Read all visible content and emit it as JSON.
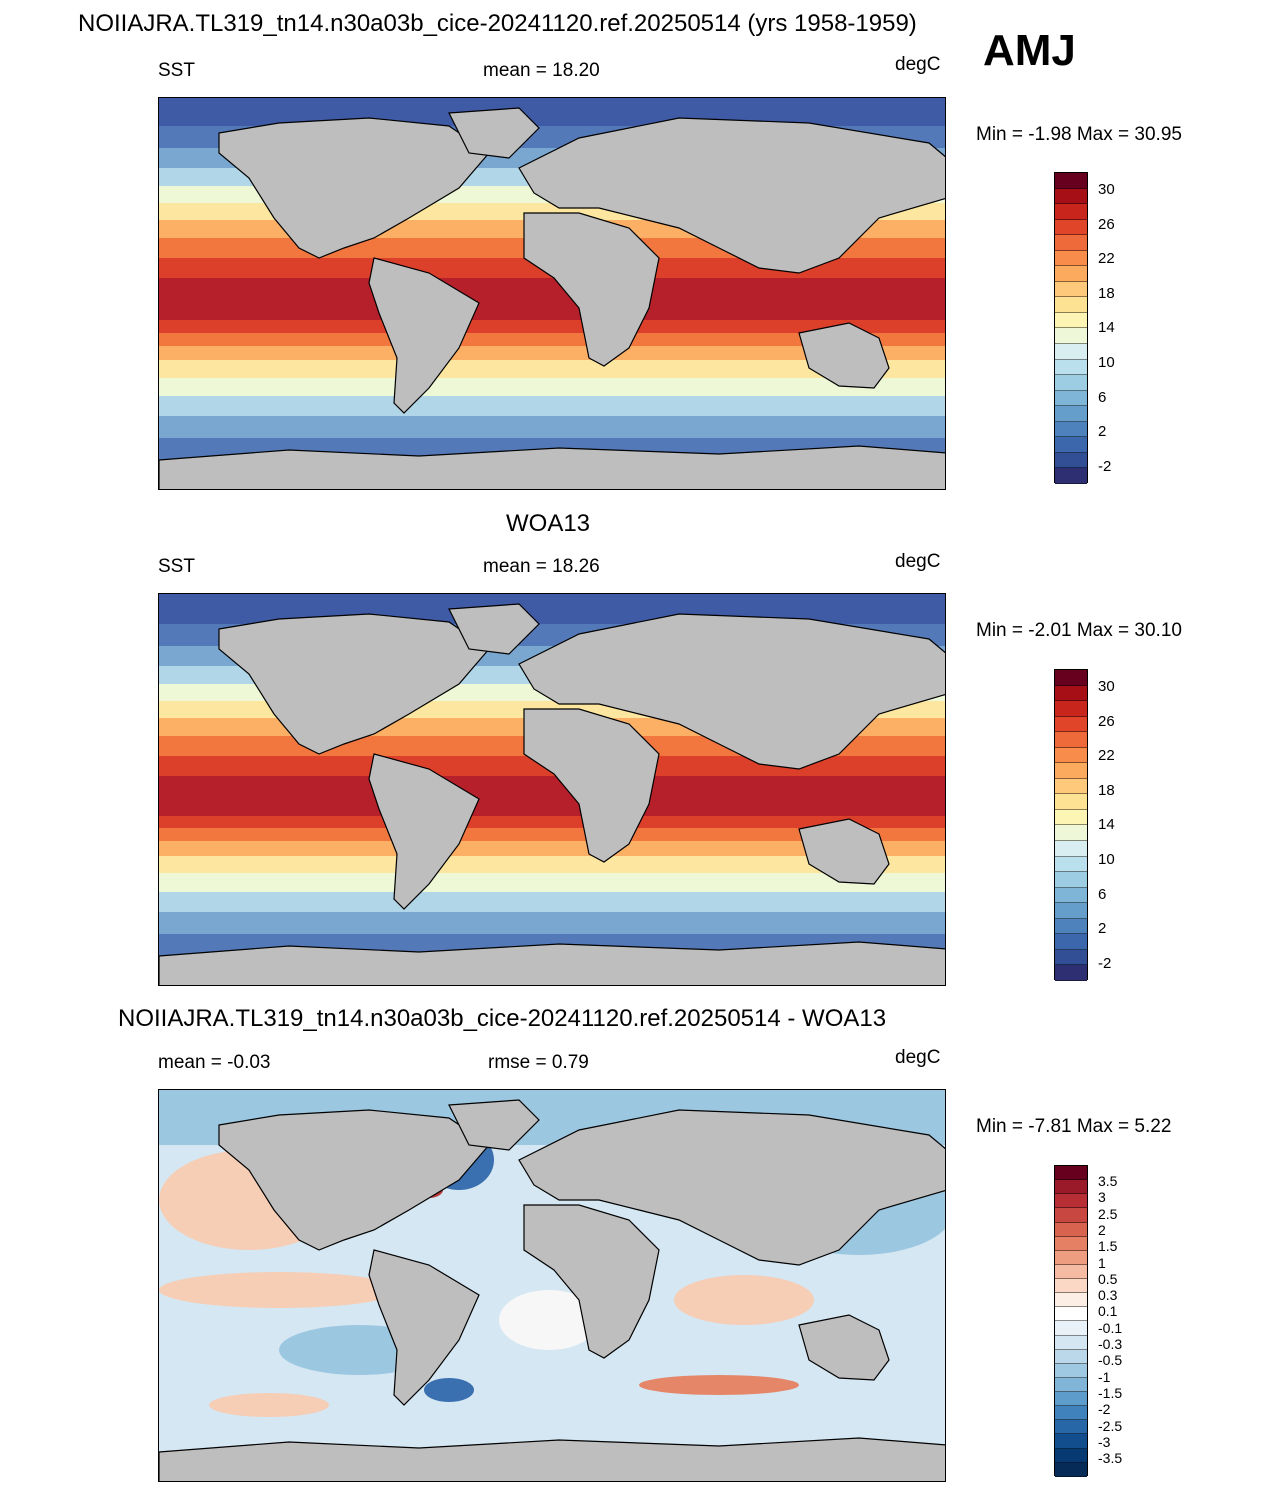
{
  "header": {
    "title": "NOIIAJRA.TL319_tn14.n30a03b_cice-20241120.ref.20250514 (yrs 1958-1959)",
    "season": "AMJ"
  },
  "panels": [
    {
      "id": "model",
      "title": "",
      "var_label": "SST",
      "stat_label": "mean =  18.20",
      "units": "degC",
      "minmax": "Min =  -1.98 Max =  30.95"
    },
    {
      "id": "obs",
      "title": "WOA13",
      "var_label": "SST",
      "stat_label": "mean =  18.26",
      "units": "degC",
      "minmax": "Min =  -2.01 Max =  30.10"
    },
    {
      "id": "diff",
      "title": "NOIIAJRA.TL319_tn14.n30a03b_cice-20241120.ref.20250514 - WOA13",
      "var_label": "mean =  -0.03",
      "stat_label": "rmse =   0.79",
      "units": "degC",
      "minmax": "Min =  -7.81 Max =   5.22"
    }
  ],
  "sst_colorbar": {
    "labels": [
      "30",
      "26",
      "22",
      "18",
      "14",
      "10",
      "6",
      "2",
      "-2"
    ],
    "colors": [
      "#67001f",
      "#a50f15",
      "#c8261c",
      "#e0452a",
      "#ee6a3a",
      "#f88c4a",
      "#fcab5e",
      "#fec97a",
      "#fee294",
      "#fdf5b4",
      "#eef8d8",
      "#d8eef0",
      "#b9e0ec",
      "#9ccde3",
      "#7fb6d8",
      "#659dcb",
      "#4e82bd",
      "#3d67ac",
      "#324e94",
      "#2e2e72"
    ]
  },
  "diff_colorbar": {
    "labels": [
      "3.5",
      "3",
      "2.5",
      "2",
      "1.5",
      "1",
      "0.5",
      "0.3",
      "0.1",
      "-0.1",
      "-0.3",
      "-0.5",
      "-1",
      "-1.5",
      "-2",
      "-2.5",
      "-3",
      "-3.5"
    ],
    "colors": [
      "#67001f",
      "#9b1a2a",
      "#b72f35",
      "#c94741",
      "#d8634f",
      "#e58064",
      "#ef9d80",
      "#f6bca3",
      "#fbd8c6",
      "#fdeee5",
      "#ffffff",
      "#e8f2f8",
      "#d3e6f1",
      "#bad8ea",
      "#9fc9e2",
      "#80b5d8",
      "#5e9ccb",
      "#3f82bc",
      "#2767a8",
      "#124e8e",
      "#073a73",
      "#062b56"
    ]
  },
  "map_colors": {
    "land": "#bebebe",
    "sst_bands": [
      "#3f5ba6",
      "#5479b9",
      "#79a7d0",
      "#b1d6e8",
      "#eef7d6",
      "#fde7a0",
      "#fbb066",
      "#f1773f",
      "#dc3f2a",
      "#b5202a"
    ],
    "diff_bands": [
      "#3a6fb0",
      "#9cc7e1",
      "#d5e7f2",
      "#f7f7f7",
      "#f6cdb5",
      "#e58669",
      "#b93a3a"
    ]
  }
}
